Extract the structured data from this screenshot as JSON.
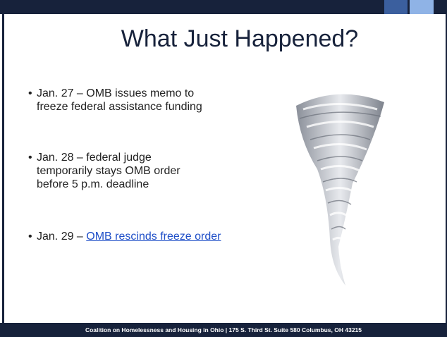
{
  "header": {
    "title": "What Just Happened?"
  },
  "bullets": [
    {
      "lines": [
        "Jan. 27 – OMB issues memo to",
        "freeze federal assistance funding"
      ]
    },
    {
      "lines": [
        "Jan. 28 – federal judge",
        "temporarily stays OMB order",
        "before 5 p.m. deadline"
      ]
    },
    {
      "prefix": "Jan. 29 – ",
      "link": "OMB rescinds freeze order"
    }
  ],
  "footer": {
    "text": "Coalition on Homelessness and Housing in Ohio | 175 S. Third St. Suite 580 Columbus, OH 43215"
  }
}
